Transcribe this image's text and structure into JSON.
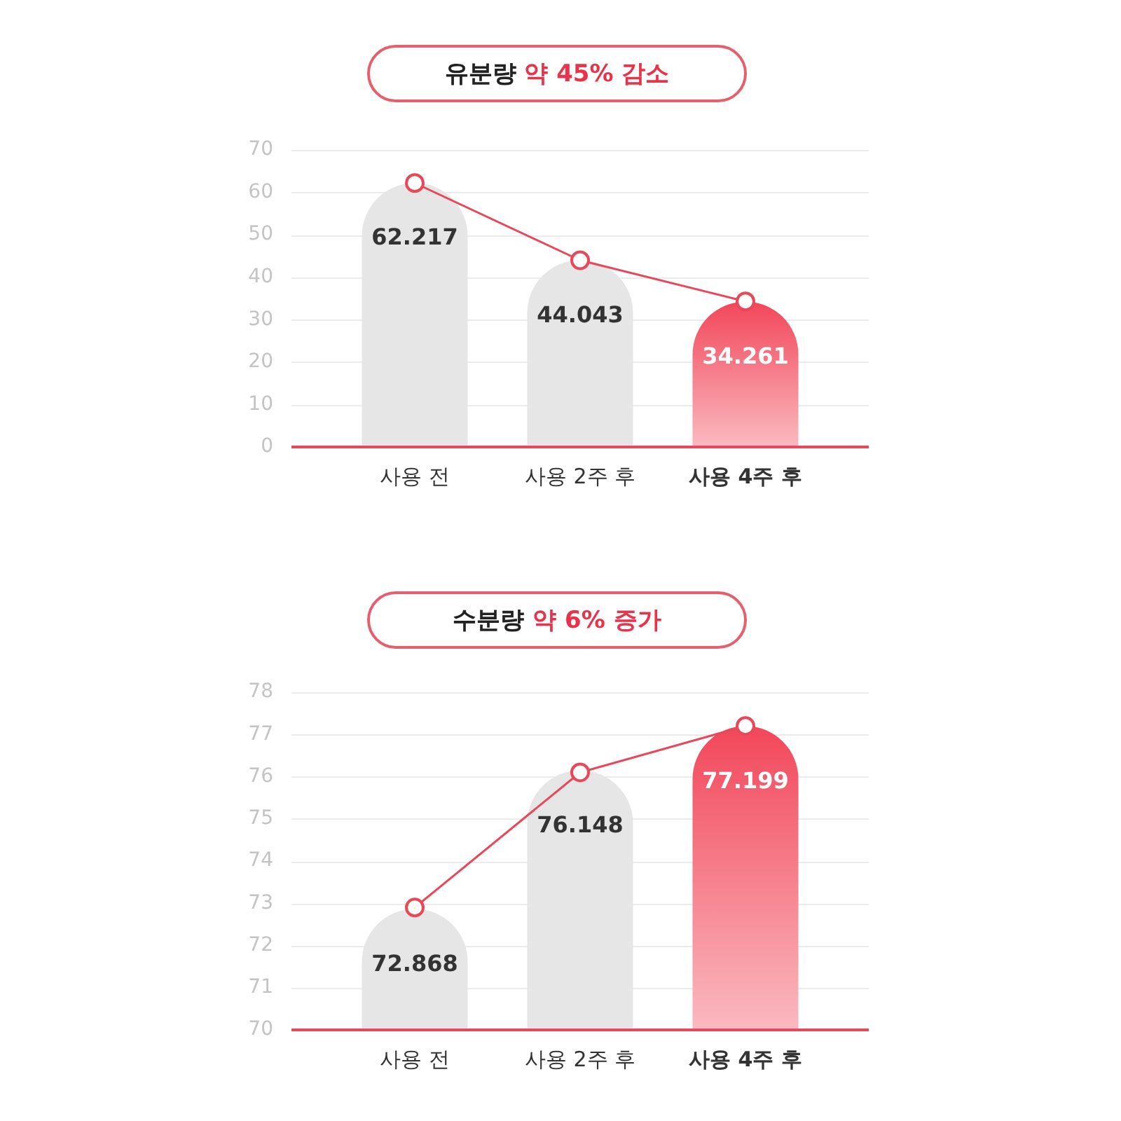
{
  "chart_data": [
    {
      "type": "bar",
      "title": "유분량 약 45% 감소",
      "categories": [
        "사용 전",
        "사용 2주 후",
        "사용 4주 후"
      ],
      "series": [
        {
          "values": [
            62.217,
            44.043,
            34.261
          ],
          "colors": [
            "#e6e6e6",
            "#e6e6e6",
            "#f2475a"
          ],
          "value_labels": [
            "62.217",
            "44.043",
            "34.261"
          ]
        },
        {
          "type": "line",
          "values": [
            62.2,
            44.0,
            34.3
          ],
          "color": "#e8485a",
          "marker": "circle"
        }
      ],
      "ylim": [
        0,
        70
      ],
      "yticks": [
        0,
        10,
        20,
        30,
        40,
        50,
        60,
        70
      ],
      "grid": "y"
    },
    {
      "type": "bar",
      "title": "수분량 약 6% 증가",
      "categories": [
        "사용 전",
        "사용 2주 후",
        "사용 4주 후"
      ],
      "series": [
        {
          "values": [
            72.868,
            76.148,
            77.199
          ],
          "colors": [
            "#e6e6e6",
            "#e6e6e6",
            "#f2475a"
          ],
          "value_labels": [
            "72.868",
            "76.148",
            "77.199"
          ]
        },
        {
          "type": "line",
          "values": [
            72.9,
            76.1,
            77.2
          ],
          "color": "#e8485a",
          "marker": "circle"
        }
      ],
      "ylim": [
        70,
        78
      ],
      "yticks": [
        70,
        71,
        72,
        73,
        74,
        75,
        76,
        77,
        78
      ],
      "grid": "y"
    }
  ]
}
